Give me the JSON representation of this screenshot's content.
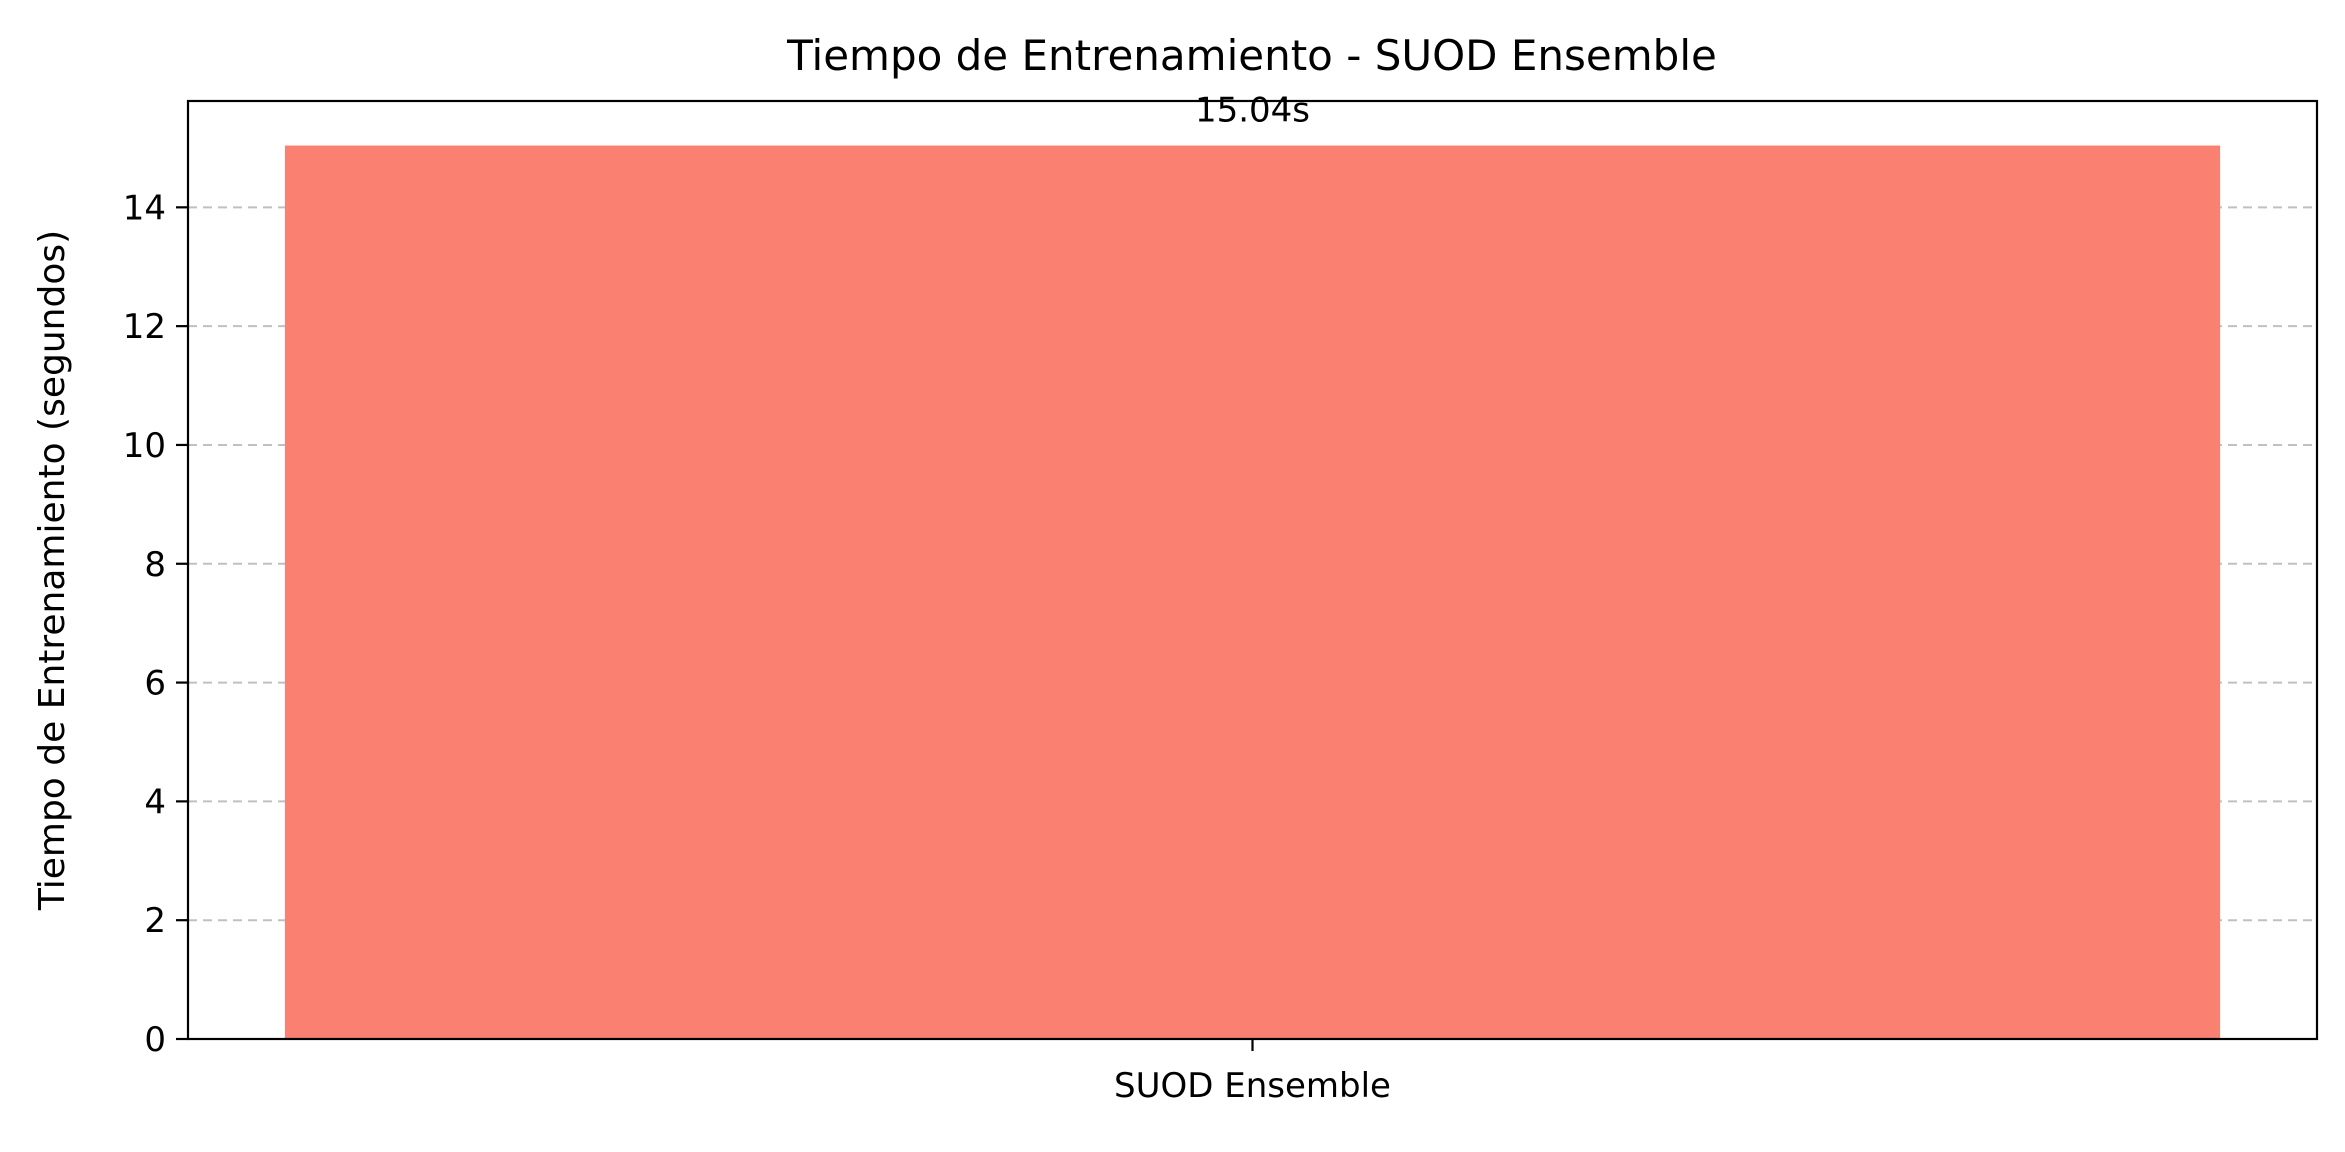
{
  "chart_data": {
    "type": "bar",
    "title": "Tiempo de Entrenamiento - SUOD Ensemble",
    "xlabel": "",
    "ylabel": "Tiempo de Entrenamiento (segundos)",
    "categories": [
      "SUOD Ensemble"
    ],
    "values": [
      15.04
    ],
    "data_labels": [
      "15.04s"
    ],
    "ylim": [
      0,
      15.79
    ],
    "yticks": [
      0,
      2,
      4,
      6,
      8,
      10,
      12,
      14
    ],
    "grid": "y-dashed",
    "legend": "none",
    "colors": {
      "bar": "#fa8072",
      "grid": "#c0c0c0",
      "axes": "#000000"
    }
  }
}
